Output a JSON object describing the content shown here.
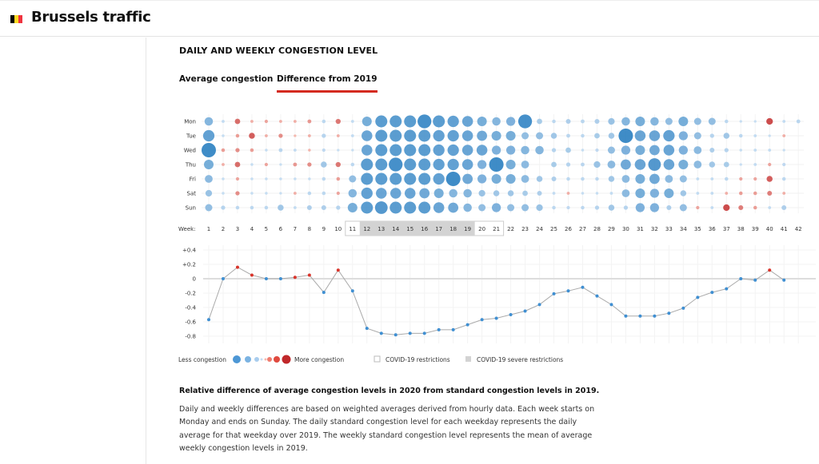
{
  "header": {
    "title": "Brussels traffic",
    "flag_colors": [
      "#000000",
      "#fdda24",
      "#ef3340"
    ]
  },
  "section": {
    "title": "DAILY AND WEEKLY CONGESTION LEVEL"
  },
  "tabs": [
    {
      "label": "Average congestion",
      "active": false
    },
    {
      "label": "Difference from 2019",
      "active": true
    }
  ],
  "colors": {
    "accent": "#d42a20",
    "less": "#2a7fc1",
    "more": "#c0282a"
  },
  "chart_data": [
    {
      "type": "scatter",
      "subtype": "bubble-grid",
      "week_label": "Week:",
      "rows": [
        "Mon",
        "Tue",
        "Wed",
        "Thu",
        "Fri",
        "Sat",
        "Sun"
      ],
      "weeks": [
        1,
        2,
        3,
        4,
        5,
        6,
        7,
        8,
        9,
        10,
        11,
        12,
        13,
        14,
        15,
        16,
        17,
        18,
        19,
        20,
        21,
        22,
        23,
        24,
        25,
        26,
        27,
        28,
        29,
        30,
        31,
        32,
        33,
        34,
        35,
        36,
        37,
        38,
        39,
        40,
        41,
        42
      ],
      "covid_restrictions_weeks": [
        11,
        21
      ],
      "covid_severe_restrictions_weeks": [
        12,
        19
      ],
      "values": [
        [
          -0.5,
          -0.05,
          0.25,
          0.05,
          0.08,
          0.05,
          0.05,
          0.12,
          -0.1,
          0.22,
          -0.05,
          -0.6,
          -0.8,
          -0.8,
          -0.8,
          -0.95,
          -0.8,
          -0.75,
          -0.7,
          -0.6,
          -0.5,
          -0.55,
          -0.95,
          -0.25,
          -0.1,
          -0.2,
          -0.12,
          -0.2,
          -0.35,
          -0.5,
          -0.6,
          -0.5,
          -0.4,
          -0.6,
          -0.4,
          -0.4,
          -0.1,
          -0.02,
          -0.02,
          0.35,
          -0.05,
          -0.12
        ],
        [
          -0.75,
          -0.03,
          0.1,
          0.3,
          0.05,
          0.15,
          0.02,
          0.05,
          -0.15,
          0.05,
          -0.05,
          -0.7,
          -0.8,
          -0.8,
          -0.8,
          -0.8,
          -0.75,
          -0.75,
          -0.7,
          -0.65,
          -0.6,
          -0.6,
          -0.4,
          -0.4,
          -0.3,
          -0.12,
          -0.1,
          -0.25,
          -0.3,
          -1.0,
          -0.7,
          -0.7,
          -0.75,
          -0.55,
          -0.4,
          -0.15,
          -0.3,
          -0.1,
          -0.05,
          -0.02,
          0.05,
          null
        ],
        [
          -1.0,
          0.1,
          0.15,
          0.1,
          -0.03,
          -0.12,
          -0.05,
          0.03,
          -0.08,
          -0.02,
          -0.02,
          -0.7,
          -0.8,
          -0.8,
          -0.8,
          -0.8,
          -0.75,
          -0.75,
          -0.7,
          -0.7,
          -0.55,
          -0.55,
          -0.5,
          -0.5,
          -0.15,
          -0.25,
          -0.03,
          -0.08,
          -0.4,
          -0.55,
          -0.6,
          -0.65,
          -0.7,
          -0.55,
          -0.45,
          -0.2,
          -0.15,
          -0.03,
          -0.05,
          -0.05,
          -0.02,
          null
        ],
        [
          -0.6,
          0.05,
          0.25,
          -0.03,
          0.08,
          -0.02,
          0.12,
          0.15,
          -0.3,
          0.22,
          -0.1,
          -0.8,
          -0.8,
          -0.95,
          -0.8,
          -0.8,
          -0.75,
          -0.75,
          -0.7,
          -0.55,
          -1.0,
          -0.6,
          -0.45,
          null,
          -0.25,
          -0.15,
          -0.12,
          -0.35,
          -0.45,
          -0.65,
          -0.7,
          -0.85,
          -0.7,
          -0.6,
          -0.45,
          -0.3,
          -0.25,
          -0.02,
          -0.05,
          0.08,
          -0.08,
          null
        ],
        [
          -0.45,
          -0.03,
          0.08,
          -0.03,
          -0.03,
          -0.03,
          -0.03,
          -0.03,
          -0.1,
          0.1,
          -0.4,
          -0.8,
          -0.8,
          -0.8,
          -0.8,
          -0.8,
          -0.75,
          -1.0,
          -0.65,
          -0.55,
          -0.6,
          -0.6,
          -0.45,
          -0.3,
          -0.2,
          -0.1,
          -0.1,
          -0.1,
          -0.3,
          -0.45,
          -0.6,
          -0.65,
          -0.45,
          -0.4,
          -0.05,
          -0.05,
          -0.1,
          0.08,
          0.08,
          0.3,
          -0.1,
          null
        ],
        [
          -0.35,
          -0.03,
          0.15,
          -0.03,
          -0.03,
          -0.02,
          0.05,
          -0.1,
          -0.1,
          0.08,
          -0.5,
          -0.75,
          -0.7,
          -0.7,
          -0.7,
          -0.65,
          -0.6,
          -0.5,
          -0.5,
          -0.35,
          -0.3,
          -0.3,
          -0.25,
          -0.2,
          -0.05,
          0.05,
          -0.03,
          -0.03,
          -0.05,
          -0.45,
          -0.6,
          -0.55,
          -0.6,
          -0.3,
          -0.05,
          -0.05,
          0.05,
          0.1,
          0.1,
          0.2,
          0.05,
          null
        ],
        [
          -0.4,
          -0.15,
          -0.1,
          -0.1,
          -0.1,
          -0.3,
          -0.05,
          -0.2,
          -0.2,
          -0.15,
          -0.6,
          -0.8,
          -0.85,
          -0.8,
          -0.8,
          -0.8,
          -0.7,
          -0.65,
          -0.5,
          -0.4,
          -0.55,
          -0.4,
          -0.4,
          -0.35,
          -0.1,
          -0.08,
          -0.1,
          -0.15,
          -0.3,
          -0.15,
          -0.55,
          -0.55,
          -0.2,
          -0.4,
          0.08,
          -0.05,
          0.35,
          0.2,
          0.1,
          -0.05,
          -0.2,
          null
        ]
      ]
    },
    {
      "type": "line",
      "x": [
        1,
        2,
        3,
        4,
        5,
        6,
        7,
        8,
        9,
        10,
        11,
        12,
        13,
        14,
        15,
        16,
        17,
        18,
        19,
        20,
        21,
        22,
        23,
        24,
        25,
        26,
        27,
        28,
        29,
        30,
        31,
        32,
        33,
        34,
        35,
        36,
        37,
        38,
        39,
        40,
        41
      ],
      "y": [
        -0.57,
        0,
        0.16,
        0.05,
        0,
        0,
        0.02,
        0.05,
        -0.19,
        0.12,
        -0.17,
        -0.69,
        -0.76,
        -0.78,
        -0.76,
        -0.76,
        -0.71,
        -0.71,
        -0.64,
        -0.57,
        -0.55,
        -0.5,
        -0.45,
        -0.36,
        -0.21,
        -0.17,
        -0.12,
        -0.24,
        -0.36,
        -0.52,
        -0.52,
        -0.52,
        -0.48,
        -0.41,
        -0.26,
        -0.19,
        -0.14,
        0,
        -0.02,
        0.12,
        -0.02
      ],
      "ylim": [
        -0.8,
        0.4
      ],
      "yticks": [
        "+0.4",
        "+0.2",
        "0",
        "-0.2",
        "-0.4",
        "-0.6",
        "-0.8"
      ],
      "grid": true
    }
  ],
  "legend": {
    "less": "Less congestion",
    "more": "More congestion",
    "restrictions": "COVID-19 restrictions",
    "severe": "COVID-19 severe restrictions"
  },
  "description": {
    "title": "Relative difference of average congestion levels in 2020 from standard congestion levels in 2019.",
    "body": "Daily and weekly differences are based on weighted averages derived from hourly data. Each week starts on Monday and ends on Sunday. The daily standard congestion level for each weekday represents the daily average for that weekday over 2019. The weekly standard congestion level represents the mean of average weekly congestion levels in 2019."
  }
}
